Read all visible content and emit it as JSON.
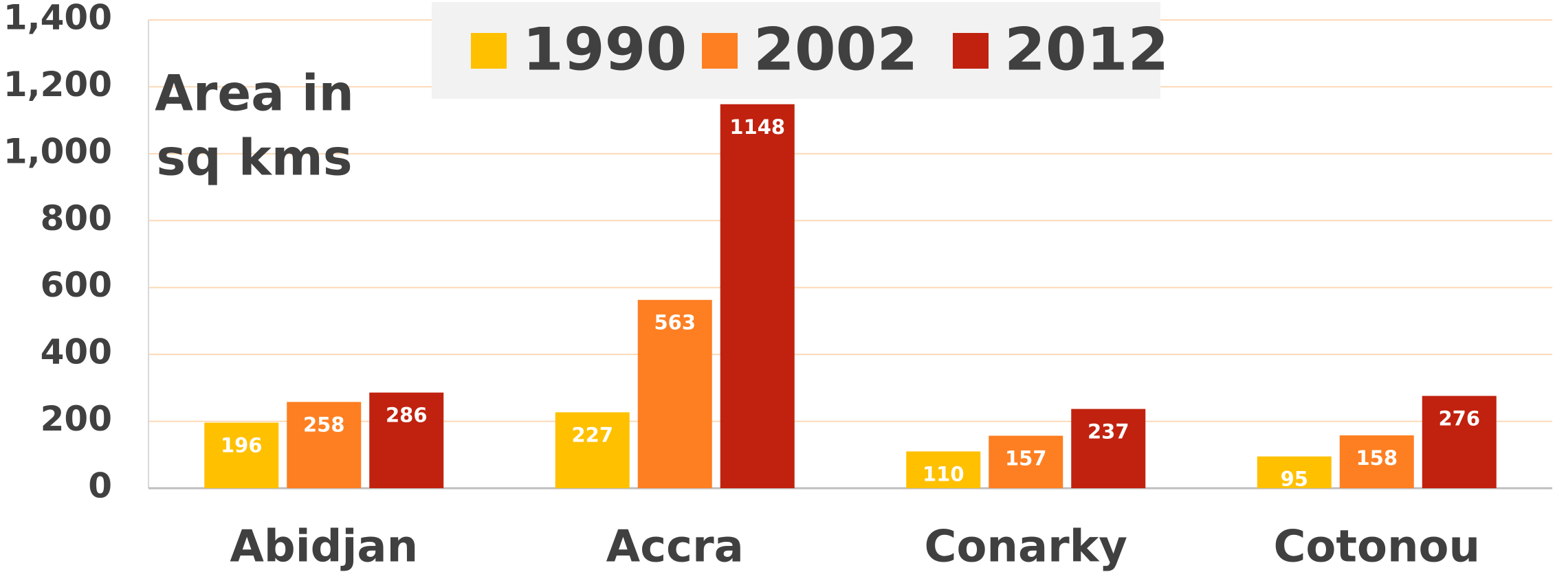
{
  "chart_data": {
    "type": "bar",
    "annotation": [
      "Area in",
      "sq kms"
    ],
    "categories": [
      "Abidjan",
      "Accra",
      "Conarky",
      "Cotonou"
    ],
    "series": [
      {
        "name": "1990",
        "color": "#ffc000",
        "values": [
          196,
          227,
          110,
          95
        ]
      },
      {
        "name": "2002",
        "color": "#fd7f22",
        "values": [
          258,
          563,
          157,
          158
        ]
      },
      {
        "name": "2012",
        "color": "#c0220f",
        "values": [
          286,
          1148,
          237,
          276
        ]
      }
    ],
    "ylim": [
      0,
      1400
    ],
    "yticks": [
      0,
      200,
      400,
      600,
      800,
      {
        "value": 1000,
        "label": "1,000"
      },
      {
        "value": 1200,
        "label": "1,200"
      },
      {
        "value": 1400,
        "label": "1,400"
      }
    ],
    "grid": true,
    "legend": "top"
  }
}
